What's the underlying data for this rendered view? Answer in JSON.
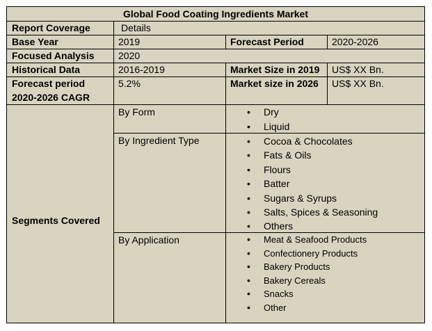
{
  "title": "Global Food Coating Ingredients Market",
  "rows": {
    "report_coverage": {
      "label": "Report Coverage",
      "value": "Details"
    },
    "base_year": {
      "label": "Base Year",
      "value": "2019",
      "label2": "Forecast Period",
      "value2": "2020-2026"
    },
    "focused_analysis": {
      "label": "Focused Analysis",
      "value": "2020"
    },
    "historical_data": {
      "label": "Historical Data",
      "value": "2016-2019",
      "label2": "Market Size in 2019",
      "value2": "US$ XX Bn."
    },
    "forecast_cagr": {
      "label_line1": "Forecast period",
      "label_line2": "2020-2026 CAGR",
      "value": "5.2%",
      "label2": "Market size in 2026",
      "value2": "US$ XX Bn."
    }
  },
  "segments": {
    "label": "Segments Covered",
    "groups": [
      {
        "name": "By Form",
        "items": [
          "Dry",
          "Liquid"
        ]
      },
      {
        "name": "By Ingredient Type",
        "items": [
          "Cocoa & Chocolates",
          "Fats & Oils",
          "Flours",
          "Batter",
          "Sugars & Syrups",
          "Salts, Spices & Seasoning",
          "Others"
        ]
      },
      {
        "name": "By Application",
        "items": [
          "Meat & Seafood Products",
          "Confectionery Products",
          "Bakery Products",
          "Bakery Cereals",
          "Snacks",
          "Other"
        ]
      }
    ]
  }
}
